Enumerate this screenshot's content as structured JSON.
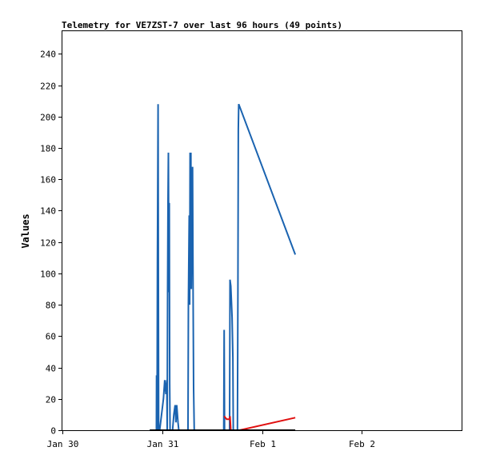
{
  "chart_data": {
    "type": "line",
    "title": "Telemetry for VE7ZST-7 over last 96 hours (49 points)",
    "xlabel": "",
    "ylabel": "Values",
    "x_ticks": [
      "Jan 30",
      "Jan 31",
      "Feb 1",
      "Feb 2"
    ],
    "xlim": [
      0,
      96
    ],
    "ylim": [
      0,
      255
    ],
    "y_ticks": [
      0,
      20,
      40,
      60,
      80,
      100,
      120,
      140,
      160,
      180,
      200,
      220,
      240
    ],
    "grid": false,
    "series": [
      {
        "color": "#1a63b0",
        "points": [
          [
            21.0,
            0
          ],
          [
            22.6,
            0
          ],
          [
            22.65,
            35
          ],
          [
            22.75,
            0
          ],
          [
            22.85,
            108
          ],
          [
            23.0,
            208
          ],
          [
            23.15,
            0
          ],
          [
            23.4,
            0
          ],
          [
            24.3,
            20
          ],
          [
            24.6,
            32
          ],
          [
            24.9,
            23
          ],
          [
            25.1,
            32
          ],
          [
            25.2,
            0
          ],
          [
            25.3,
            88
          ],
          [
            25.4,
            146
          ],
          [
            25.5,
            177
          ],
          [
            25.6,
            88
          ],
          [
            25.7,
            145
          ],
          [
            25.8,
            30
          ],
          [
            25.9,
            0
          ],
          [
            26.5,
            0
          ],
          [
            26.8,
            10
          ],
          [
            27.1,
            16
          ],
          [
            27.3,
            5
          ],
          [
            27.5,
            16
          ],
          [
            27.8,
            5
          ],
          [
            28.0,
            0
          ],
          [
            28.3,
            0
          ],
          [
            29.8,
            0
          ],
          [
            30.2,
            0
          ],
          [
            30.3,
            80
          ],
          [
            30.5,
            137
          ],
          [
            30.6,
            80
          ],
          [
            30.7,
            177
          ],
          [
            30.8,
            120
          ],
          [
            30.9,
            177
          ],
          [
            31.0,
            90
          ],
          [
            31.1,
            131
          ],
          [
            31.2,
            135
          ],
          [
            31.3,
            168
          ],
          [
            31.4,
            105
          ],
          [
            31.55,
            27
          ],
          [
            31.7,
            0
          ],
          [
            38.8,
            0
          ],
          [
            38.9,
            64
          ],
          [
            39.0,
            0
          ],
          [
            40.2,
            0
          ],
          [
            40.3,
            96
          ],
          [
            40.5,
            92
          ],
          [
            40.8,
            72
          ],
          [
            41.0,
            46
          ],
          [
            41.1,
            0
          ],
          [
            42.1,
            0
          ],
          [
            42.2,
            90
          ],
          [
            42.3,
            192
          ],
          [
            42.4,
            208
          ],
          [
            56.0,
            112
          ]
        ]
      },
      {
        "color": "#e01010",
        "points": [
          [
            38.9,
            9
          ],
          [
            39.5,
            7
          ],
          [
            40.2,
            7
          ],
          [
            40.3,
            9
          ],
          [
            40.5,
            0
          ],
          [
            42.6,
            0
          ],
          [
            56.0,
            8
          ]
        ]
      },
      {
        "color": "#000000",
        "points": [
          [
            21.0,
            0
          ],
          [
            56.0,
            0
          ]
        ]
      }
    ]
  }
}
